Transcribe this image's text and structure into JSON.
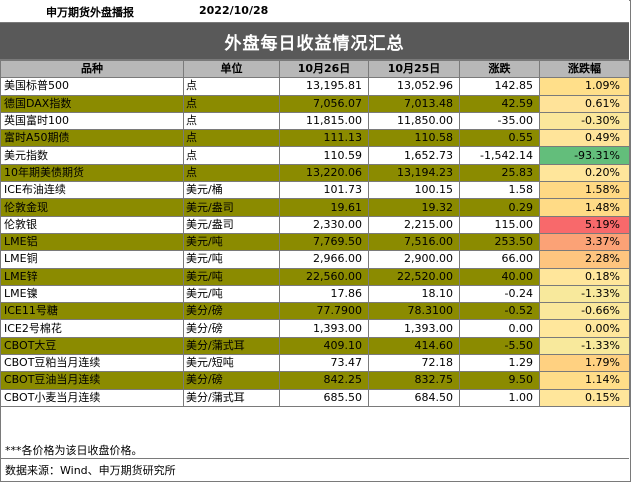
{
  "header": {
    "source": "申万期货外盘播报",
    "date": "2022/10/28"
  },
  "title": "外盘每日收益情况汇总",
  "columns": [
    "品种",
    "单位",
    "10月26日",
    "10月25日",
    "涨跌",
    "涨跌幅"
  ],
  "rows": [
    {
      "name": "美国标普500",
      "unit": "点",
      "d26": "13,195.81",
      "d25": "13,052.96",
      "chg": "142.85",
      "pct": "1.09%",
      "pct_color": "#ffdf8a"
    },
    {
      "name": "德国DAX指数",
      "unit": "点",
      "d26": "7,056.07",
      "d25": "7,013.48",
      "chg": "42.59",
      "pct": "0.61%",
      "pct_color": "#ffe399"
    },
    {
      "name": "英国富时100",
      "unit": "点",
      "d26": "11,815.00",
      "d25": "11,850.00",
      "chg": "-35.00",
      "pct": "-0.30%",
      "pct_color": "#fbe79b"
    },
    {
      "name": "富时A50期债",
      "unit": "点",
      "d26": "111.13",
      "d25": "110.58",
      "chg": "0.55",
      "pct": "0.49%",
      "pct_color": "#ffe49a"
    },
    {
      "name": "美元指数",
      "unit": "点",
      "d26": "110.59",
      "d25": "1,652.73",
      "chg": "-1,542.14",
      "pct": "-93.31%",
      "pct_color": "#63be7b"
    },
    {
      "name": "10年期美债期货",
      "unit": "点",
      "d26": "13,220.06",
      "d25": "13,194.23",
      "chg": "25.83",
      "pct": "0.20%",
      "pct_color": "#ffe69b"
    },
    {
      "name": "ICE布油连续",
      "unit": "美元/桶",
      "d26": "101.73",
      "d25": "100.15",
      "chg": "1.58",
      "pct": "1.58%",
      "pct_color": "#ffd984"
    },
    {
      "name": "伦敦金现",
      "unit": "美元/盎司",
      "d26": "19.61",
      "d25": "19.32",
      "chg": "0.29",
      "pct": "1.48%",
      "pct_color": "#ffdb86"
    },
    {
      "name": "伦敦银",
      "unit": "美元/盎司",
      "d26": "2,330.00",
      "d25": "2,215.00",
      "chg": "115.00",
      "pct": "5.19%",
      "pct_color": "#f8696b"
    },
    {
      "name": "LME铝",
      "unit": "美元/吨",
      "d26": "7,769.50",
      "d25": "7,516.00",
      "chg": "253.50",
      "pct": "3.37%",
      "pct_color": "#fba276"
    },
    {
      "name": "LME铜",
      "unit": "美元/吨",
      "d26": "2,966.00",
      "d25": "2,900.00",
      "chg": "66.00",
      "pct": "2.28%",
      "pct_color": "#fec57f"
    },
    {
      "name": "LME锌",
      "unit": "美元/吨",
      "d26": "22,560.00",
      "d25": "22,520.00",
      "chg": "40.00",
      "pct": "0.18%",
      "pct_color": "#ffe69b"
    },
    {
      "name": "LME镍",
      "unit": "美元/吨",
      "d26": "17.86",
      "d25": "18.10",
      "chg": "-0.24",
      "pct": "-1.33%",
      "pct_color": "#f8e99c"
    },
    {
      "name": "ICE11号糖",
      "unit": "美分/磅",
      "d26": "77.7900",
      "d25": "78.3100",
      "chg": "-0.52",
      "pct": "-0.66%",
      "pct_color": "#fae89b"
    },
    {
      "name": "ICE2号棉花",
      "unit": "美分/磅",
      "d26": "1,393.00",
      "d25": "1,393.00",
      "chg": "0.00",
      "pct": "0.00%",
      "pct_color": "#ffe79c"
    },
    {
      "name": "CBOT大豆",
      "unit": "美分/蒲式耳",
      "d26": "409.10",
      "d25": "414.60",
      "chg": "-5.50",
      "pct": "-1.33%",
      "pct_color": "#f8e99c"
    },
    {
      "name": "CBOT豆粕当月连续",
      "unit": "美元/短吨",
      "d26": "73.47",
      "d25": "72.18",
      "chg": "1.29",
      "pct": "1.79%",
      "pct_color": "#ffd181"
    },
    {
      "name": "CBOT豆油当月连续",
      "unit": "美分/磅",
      "d26": "842.25",
      "d25": "832.75",
      "chg": "9.50",
      "pct": "1.14%",
      "pct_color": "#ffdd88"
    },
    {
      "name": "CBOT小麦当月连续",
      "unit": "美分/蒲式耳",
      "d26": "685.50",
      "d25": "684.50",
      "chg": "1.00",
      "pct": "0.15%",
      "pct_color": "#ffe69b"
    }
  ],
  "row_styles": [
    "white",
    "olive",
    "white",
    "olive",
    "white",
    "olive",
    "white",
    "olive",
    "white",
    "olive",
    "white",
    "olive",
    "white",
    "olive",
    "white",
    "olive",
    "white",
    "olive",
    "white"
  ],
  "colors": {
    "olive": "#8b8b00",
    "title_bg": "#595959",
    "header_bg": "#b8b8b8"
  },
  "footnote": "***各价格为该日收盘价格。",
  "data_source": "数据来源：Wind、申万期货研究所"
}
